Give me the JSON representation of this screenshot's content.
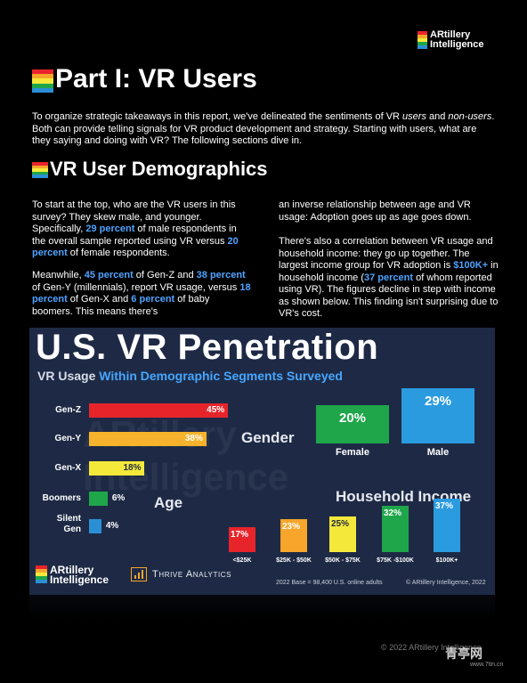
{
  "brand": {
    "line1": "ARtillery",
    "line2": "Intelligence"
  },
  "part_title": "Part I: VR Users",
  "intro": "To organize strategic takeaways in this report, we've delineated the sentiments of VR users and non-users. Both can provide telling signals for VR product development and strategy. Starting with users, what are they saying and doing with VR? The following sections dive in.",
  "intro_parts": {
    "a": "To organize strategic takeaways in this report, we've delineated the sentiments of VR ",
    "b": "users",
    "c": " and ",
    "d": "non-users",
    "e": ". Both can provide telling signals for VR product development and strategy. Starting with users, what are they saying and doing with VR? The following sections dive in."
  },
  "section_title": "VR User Demographics",
  "col1": {
    "p1a": "To start at the top, who are the VR users in this survey? They skew male, and younger. Specifically, ",
    "p1b": "29 percent",
    "p1c": " of male respondents in the overall sample reported using VR versus ",
    "p1d": "20 percent",
    "p1e": " of female respondents.",
    "p2a": "Meanwhile, ",
    "p2b": "45 percent",
    "p2c": " of Gen-Z and ",
    "p2d": "38 percent",
    "p2e": " of Gen-Y (millennials), report VR usage, versus ",
    "p2f": "18 percent",
    "p2g": " of Gen-X and ",
    "p2h": "6 percent",
    "p2i": " of baby boomers. This means there's"
  },
  "col2": {
    "p1": "an inverse relationship between age and VR usage: Adoption goes up as age goes down.",
    "p2a": "There's also a correlation between VR usage and household income: they go up together. The largest income group for VR adoption is ",
    "p2b": "$100K+",
    "p2c": " in household income (",
    "p2d": "37 percent",
    "p2e": " of whom reported using VR). The figures decline in step with income as shown below. This finding isn't surprising due to VR's cost."
  },
  "infographic": {
    "title": "U.S. VR Penetration",
    "subtitle_a": "VR Usage ",
    "subtitle_b": "Within Demographic Segments Surveyed",
    "age_label": "Age",
    "gender_label": "Gender",
    "income_label": "Household Income",
    "thrive": "Thrive Analytics",
    "base_note": "2022 Base = 98,400 U.S. online adults",
    "copyright_note": "© ARtillery Intelligence, 2022",
    "colors": {
      "bg": "#1e2a45",
      "highlight": "#46a6ff"
    }
  },
  "chart_data": [
    {
      "type": "bar",
      "orientation": "horizontal",
      "title": "Age",
      "categories": [
        "Gen-Z",
        "Gen-Y",
        "Gen-X",
        "Boomers",
        "Silent Gen"
      ],
      "values": [
        45,
        38,
        18,
        6,
        4
      ],
      "value_labels": [
        "45%",
        "38%",
        "18%",
        "6%",
        "4%"
      ],
      "colors": [
        "#e8242b",
        "#f7b32b",
        "#f4e93b",
        "#1fa64a",
        "#2b8fd6"
      ]
    },
    {
      "type": "bar",
      "title": "Gender",
      "categories": [
        "Female",
        "Male"
      ],
      "values": [
        20,
        29
      ],
      "value_labels": [
        "20%",
        "29%"
      ],
      "colors": [
        "#1fa64a",
        "#2b9be0"
      ]
    },
    {
      "type": "bar",
      "title": "Household Income",
      "categories": [
        "<$25K",
        "$25K - $50K",
        "$50K - $75K",
        "$75K -$100K",
        "$100K+"
      ],
      "values": [
        17,
        23,
        25,
        32,
        37
      ],
      "value_labels": [
        "17%",
        "23%",
        "25%",
        "32%",
        "37%"
      ],
      "colors": [
        "#e8242b",
        "#f7a52b",
        "#f4e93b",
        "#1fa64a",
        "#2b9be0"
      ]
    }
  ],
  "footer": {
    "copyright": "© 2022 ARtillery Intelligence",
    "site": "青亭网",
    "site_url": "www.7tin.cn"
  }
}
